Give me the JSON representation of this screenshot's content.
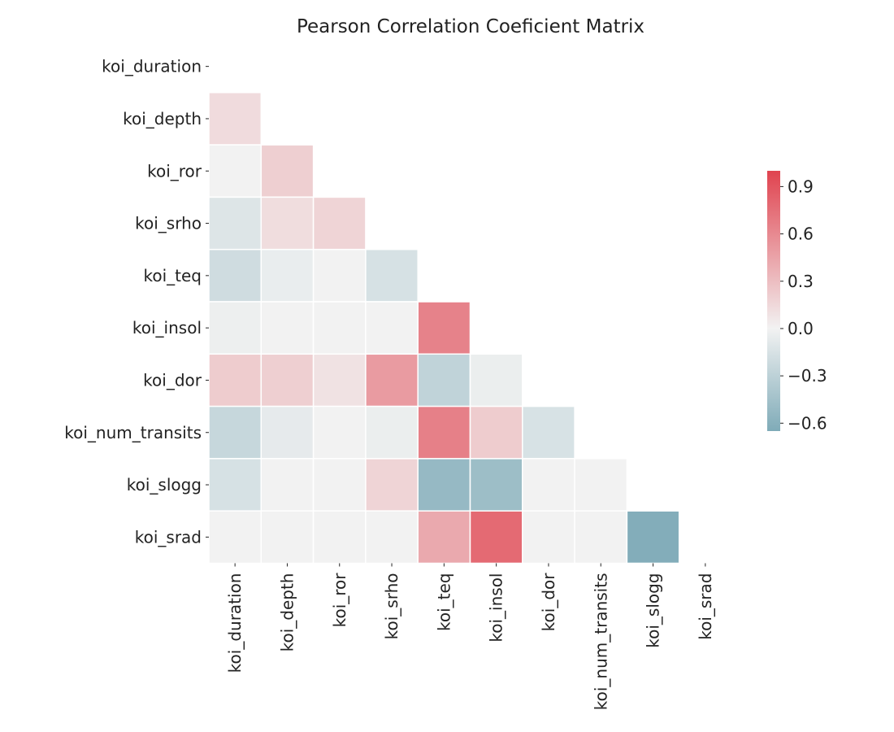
{
  "chart_data": {
    "type": "heatmap",
    "title": "Pearson Correlation Coeficient Matrix",
    "row_labels": [
      "koi_duration",
      "koi_depth",
      "koi_ror",
      "koi_srho",
      "koi_teq",
      "koi_insol",
      "koi_dor",
      "koi_num_transits",
      "koi_slogg",
      "koi_srad"
    ],
    "col_labels": [
      "koi_duration",
      "koi_depth",
      "koi_ror",
      "koi_srho",
      "koi_teq",
      "koi_insol",
      "koi_dor",
      "koi_num_transits",
      "koi_slogg",
      "koi_srad"
    ],
    "mask": "upper-triangle-including-diagonal",
    "values": [
      [
        null,
        null,
        null,
        null,
        null,
        null,
        null,
        null,
        null,
        null
      ],
      [
        0.13,
        null,
        null,
        null,
        null,
        null,
        null,
        null,
        null,
        null
      ],
      [
        0.0,
        0.2,
        null,
        null,
        null,
        null,
        null,
        null,
        null,
        null
      ],
      [
        -0.12,
        0.12,
        0.17,
        null,
        null,
        null,
        null,
        null,
        null,
        null
      ],
      [
        -0.2,
        -0.05,
        0.0,
        -0.16,
        null,
        null,
        null,
        null,
        null,
        null
      ],
      [
        -0.03,
        0.0,
        0.0,
        0.0,
        0.64,
        null,
        null,
        null,
        null,
        null
      ],
      [
        0.22,
        0.2,
        0.09,
        0.5,
        -0.28,
        -0.04,
        null,
        null,
        null,
        null
      ],
      [
        -0.25,
        -0.07,
        0.0,
        -0.04,
        0.65,
        0.22,
        -0.15,
        null,
        null,
        null
      ],
      [
        -0.16,
        0.0,
        0.0,
        0.17,
        -0.52,
        -0.48,
        0.0,
        0.0,
        null,
        null
      ],
      [
        0.0,
        0.0,
        0.0,
        0.0,
        0.42,
        0.78,
        0.0,
        0.0,
        -0.63,
        null
      ]
    ],
    "colorbar": {
      "vmin": -0.65,
      "vmax": 1.0,
      "ticks": [
        0.9,
        0.6,
        0.3,
        0.0,
        -0.3,
        -0.6
      ],
      "tick_labels": [
        "0.9",
        "0.6",
        "0.3",
        "0.0",
        "−0.3",
        "−0.6"
      ],
      "center": 0.0,
      "low_color": "#7fabb8",
      "mid_color": "#f2f2f2",
      "high_color": "#e0434f"
    },
    "grid": false,
    "cell_border_color": "#ffffff"
  }
}
